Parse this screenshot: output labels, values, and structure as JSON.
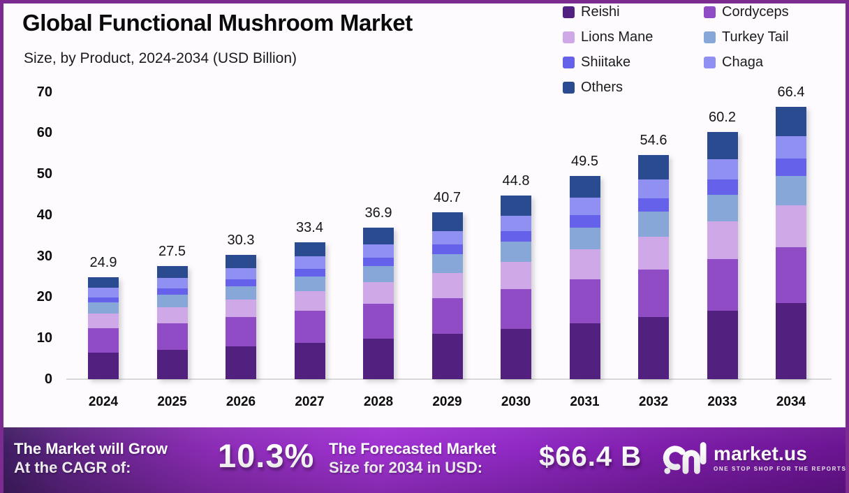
{
  "title": "Global Functional Mushroom Market",
  "subtitle": "Size, by Product, 2024-2034 (USD Billion)",
  "chart_data": {
    "type": "bar",
    "stacked": true,
    "title": "Global Functional Mushroom Market Size, by Product, 2024-2034 (USD Billion)",
    "xlabel": "",
    "ylabel": "USD Billion",
    "ylim": [
      0,
      70
    ],
    "yticks": [
      0,
      10,
      20,
      30,
      40,
      50,
      60,
      70
    ],
    "grid": false,
    "legend_position": "top-right",
    "categories": [
      "2024",
      "2025",
      "2026",
      "2027",
      "2028",
      "2029",
      "2030",
      "2031",
      "2032",
      "2033",
      "2034"
    ],
    "totals": [
      24.9,
      27.5,
      30.3,
      33.4,
      36.9,
      40.7,
      44.8,
      49.5,
      54.6,
      60.2,
      66.4
    ],
    "series": [
      {
        "name": "Reishi",
        "color": "#52207f",
        "values": [
          6.5,
          7.2,
          8.0,
          8.9,
          9.9,
          11.0,
          12.2,
          13.6,
          15.1,
          16.7,
          18.6
        ]
      },
      {
        "name": "Cordyceps",
        "color": "#8f4cc5",
        "values": [
          6.0,
          6.5,
          7.1,
          7.7,
          8.4,
          8.8,
          9.8,
          10.7,
          11.6,
          12.6,
          13.6
        ]
      },
      {
        "name": "Lions Mane",
        "color": "#cfa8e8",
        "values": [
          3.5,
          3.9,
          4.3,
          4.8,
          5.3,
          6.0,
          6.6,
          7.3,
          8.1,
          9.1,
          10.1
        ]
      },
      {
        "name": "Turkey Tail",
        "color": "#87a7d8",
        "values": [
          2.7,
          3.0,
          3.3,
          3.6,
          4.0,
          4.6,
          4.9,
          5.4,
          6.0,
          6.6,
          7.3
        ]
      },
      {
        "name": "Shiitake",
        "color": "#6561ea",
        "values": [
          1.3,
          1.5,
          1.7,
          1.9,
          2.1,
          2.4,
          2.6,
          3.0,
          3.3,
          3.7,
          4.2
        ]
      },
      {
        "name": "Chaga",
        "color": "#8f90f2",
        "values": [
          2.3,
          2.5,
          2.7,
          3.0,
          3.2,
          3.3,
          3.8,
          4.2,
          4.5,
          4.9,
          5.4
        ]
      },
      {
        "name": "Others",
        "color": "#2a4b8f",
        "values": [
          2.6,
          2.9,
          3.2,
          3.5,
          4.0,
          4.6,
          4.9,
          5.3,
          6.0,
          6.6,
          7.2
        ]
      }
    ]
  },
  "banner": {
    "cagr_label_line1": "The Market will Grow",
    "cagr_label_line2": "At the CAGR of:",
    "cagr_value": "10.3%",
    "forecast_label_line1": "The Forecasted Market",
    "forecast_label_line2": "Size for 2034 in USD:",
    "forecast_value": "$66.4 B",
    "brand": "market.us",
    "brand_tagline": "ONE STOP SHOP FOR THE REPORTS"
  },
  "colors": {
    "frame": "#7c2b91",
    "background": "#fdfbfe",
    "axis_baseline": "#d8d8d8",
    "banner_gradient": [
      "#3d1d60",
      "#5f2384",
      "#8c2cb6",
      "#a032d2",
      "#9229c6",
      "#7c1ca8",
      "#6a1492"
    ]
  }
}
